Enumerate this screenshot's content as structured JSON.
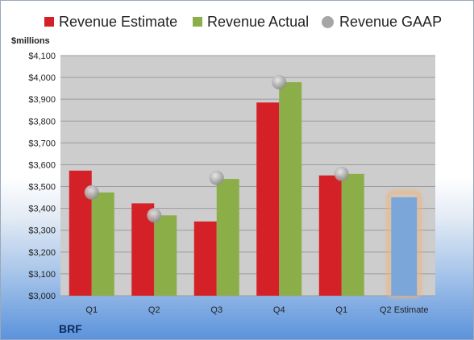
{
  "legend": {
    "estimate_label": "Revenue Estimate",
    "actual_label": "Revenue Actual",
    "gaap_label": "Revenue GAAP"
  },
  "unit_label": "$millions",
  "company_label": "BRF",
  "colors": {
    "estimate": "#d42027",
    "actual": "#8cae48",
    "gaap": "#a6a6a6",
    "projected": "#7aa6da",
    "projected_glow": "#f0b27a",
    "plot_background": "#cdcdcd"
  },
  "chart_data": {
    "type": "bar",
    "categories": [
      "Q1",
      "Q2",
      "Q3",
      "Q4",
      "Q1",
      "Q2 Estimate"
    ],
    "series": [
      {
        "name": "Revenue Estimate",
        "values": [
          3573,
          3423,
          3340,
          3885,
          3551,
          null
        ]
      },
      {
        "name": "Revenue Actual",
        "values": [
          3473,
          3368,
          3535,
          3978,
          3558,
          null
        ]
      },
      {
        "name": "Revenue GAAP",
        "marker": "circle",
        "values": [
          3473,
          3368,
          3540,
          3978,
          3558,
          null
        ]
      }
    ],
    "projected": {
      "category": "Q2 Estimate",
      "value": 3451
    },
    "ylim": [
      3000,
      4100
    ],
    "yticks": [
      3000,
      3100,
      3200,
      3300,
      3400,
      3500,
      3600,
      3700,
      3800,
      3900,
      4000,
      4100
    ],
    "ytick_labels": [
      "$3,000",
      "$3,100",
      "$3,200",
      "$3,300",
      "$3,400",
      "$3,500",
      "$3,600",
      "$3,700",
      "$3,800",
      "$3,900",
      "$4,000",
      "$4,100"
    ],
    "ylabel": "$millions",
    "grid": true,
    "legend_position": "top"
  }
}
